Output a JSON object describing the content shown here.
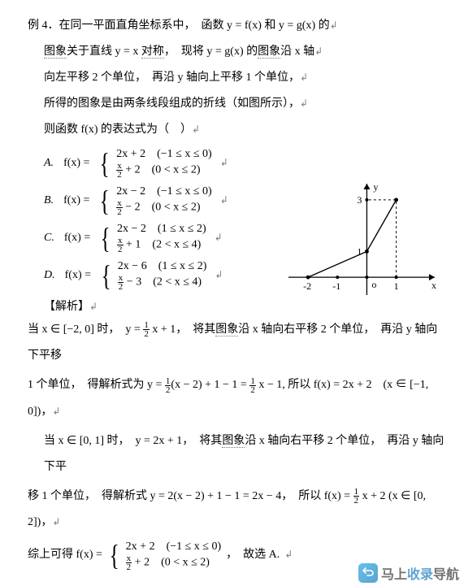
{
  "problem": {
    "heading": "例 4．在同一平面直角坐标系中，　函数 y = f(x) 和 y = g(x) 的",
    "line2a": "图象",
    "line2b": "关于直线 y = x ",
    "line2c": "对称",
    "line2d": "，　现将 y = g(x) 的",
    "line2e": "图象",
    "line2f": "沿 x 轴",
    "line3": "向左平移 2 个单位，　再沿 y 轴向上平移 1 个单位，",
    "line4": "所得的图象是由两条线段组成的折线（如图所示），",
    "line5": "则函数 f(x) 的表达式为（　）"
  },
  "arrow": "↲",
  "options": {
    "A": {
      "label": "A.",
      "prefix": "f(x) =",
      "row1": "2x + 2　(−1 ≤ x ≤ 0)",
      "row2_frac_num": "x",
      "row2_frac_den": "2",
      "row2_rest": " + 2　(0 < x ≤ 2)"
    },
    "B": {
      "label": "B.",
      "prefix": "f(x) =",
      "row1": "2x − 2　(−1 ≤ x ≤ 0)",
      "row2_frac_num": "x",
      "row2_frac_den": "2",
      "row2_rest": " − 2　(0 < x ≤ 2)"
    },
    "C": {
      "label": "C.",
      "prefix": "f(x) =",
      "row1": "2x − 2　(1 ≤ x ≤ 2)",
      "row2_frac_num": "x",
      "row2_frac_den": "2",
      "row2_rest": " + 1　(2 < x ≤ 4)"
    },
    "D": {
      "label": "D.",
      "prefix": "f(x) =",
      "row1": "2x − 6　(1 ≤ x ≤ 2)",
      "row2_frac_num": "x",
      "row2_frac_den": "2",
      "row2_rest": " − 3　(2 < x ≤ 4)"
    }
  },
  "analysis_label": "【解析】",
  "solution": {
    "s1a": "当 x ∈ [−2, 0] 时，　y = ",
    "s1_frac_num": "1",
    "s1_frac_den": "2",
    "s1b": " x + 1，　将其",
    "s1_mid": "图象",
    "s1c": "沿 x 轴向右平移  2  个单位，　再沿 y 轴向下平移",
    "s2a": "1 个单位，　得解析式为 y = ",
    "s2_frac_num": "1",
    "s2_frac_den": "2",
    "s2b": "(x − 2) + 1 − 1 = ",
    "s2_frac2_num": "1",
    "s2_frac2_den": "2",
    "s2c": " x − 1, 所以 f(x) = 2x + 2　(x ∈ [−1, 0])，",
    "s3a": "当 x ∈ [0, 1] 时，　y = 2x + 1，　将其",
    "s3_mid": "图象",
    "s3b": "沿 x 轴向右平移  2  个单位，　再沿 y 轴向下平",
    "s4a": "移  1  个单位，　得解析式 y = 2(x − 2) + 1 − 1 = 2x − 4，　所以 f(x) = ",
    "s4_frac_num": "1",
    "s4_frac_den": "2",
    "s4b": " x + 2 (x ∈ [0, 2])，",
    "s5_prefix": "综上可得 f(x) =",
    "s5_row1": "2x + 2　(−1 ≤ x ≤ 0)",
    "s5_r2_num": "x",
    "s5_r2_den": "2",
    "s5_r2_rest": " + 2　(0 < x ≤ 2)",
    "s5_tail": "，　故选 A."
  },
  "graph": {
    "x_axis_label": "x",
    "y_axis_label": "y",
    "points": [
      [
        -2,
        0
      ],
      [
        0,
        1
      ],
      [
        1,
        3
      ]
    ],
    "tick_x": [
      -2,
      -1,
      0,
      1
    ],
    "tick_y": [
      1,
      3
    ],
    "origin_label": "o",
    "label1": "1",
    "label3": "3",
    "lblm2": "-2",
    "lblm1": "-1",
    "lblx1": "1",
    "axis_color": "#000000",
    "line_color": "#000000",
    "dash_color": "#000000",
    "bg": "#ffffff",
    "xlim": [
      -2.5,
      2.2
    ],
    "ylim": [
      -0.5,
      3.5
    ],
    "dot_radius": 2.4,
    "line_width": 1.4,
    "font_size": 12
  },
  "watermark": {
    "icon_glyph": "✓",
    "text_a": "马上",
    "text_b": "收录",
    "text_c": "导航"
  }
}
